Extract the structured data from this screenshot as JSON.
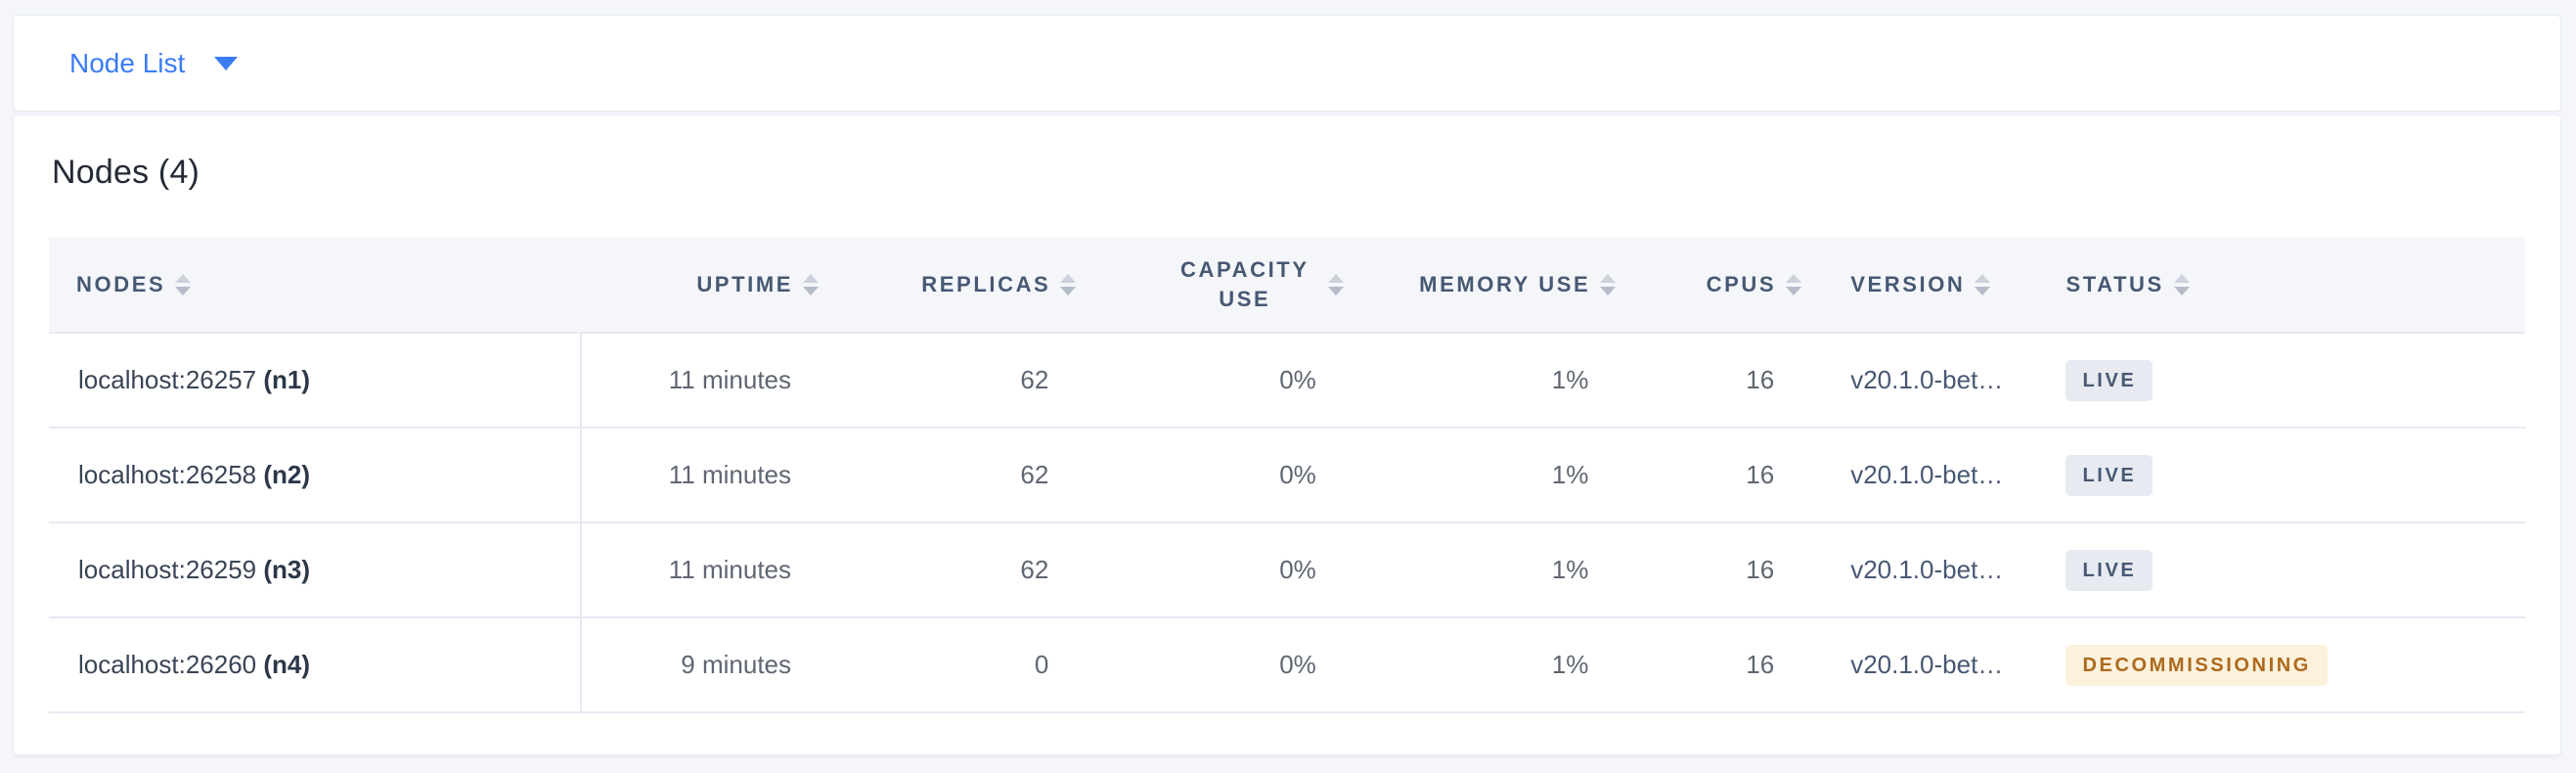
{
  "nav": {
    "view_dropdown": {
      "label": "Node List"
    }
  },
  "main": {
    "heading": "Nodes (4)",
    "table": {
      "headers": {
        "nodes": "NODES",
        "uptime": "UPTIME",
        "replicas": "REPLICAS",
        "capacity_use": "CAPACITY USE",
        "memory_use": "MEMORY USE",
        "cpus": "CPUS",
        "version": "VERSION",
        "status": "STATUS"
      },
      "rows": [
        {
          "address": "localhost:26257",
          "id": "(n1)",
          "uptime": "11 minutes",
          "replicas": "62",
          "capacity_use": "0%",
          "memory_use": "1%",
          "cpus": "16",
          "version": "v20.1.0-bet…",
          "status": "LIVE"
        },
        {
          "address": "localhost:26258",
          "id": "(n2)",
          "uptime": "11 minutes",
          "replicas": "62",
          "capacity_use": "0%",
          "memory_use": "1%",
          "cpus": "16",
          "version": "v20.1.0-bet…",
          "status": "LIVE"
        },
        {
          "address": "localhost:26259",
          "id": "(n3)",
          "uptime": "11 minutes",
          "replicas": "62",
          "capacity_use": "0%",
          "memory_use": "1%",
          "cpus": "16",
          "version": "v20.1.0-bet…",
          "status": "LIVE"
        },
        {
          "address": "localhost:26260",
          "id": "(n4)",
          "uptime": "9 minutes",
          "replicas": "0",
          "capacity_use": "0%",
          "memory_use": "1%",
          "cpus": "16",
          "version": "v20.1.0-bet…",
          "status": "DECOMMISSIONING"
        }
      ]
    }
  },
  "colors": {
    "accent_blue": "#3b7cf5",
    "header_text": "#475872",
    "live_badge_bg": "#e7eaf1",
    "live_badge_text": "#475872",
    "decommissioning_badge_bg": "#fcf1dc",
    "decommissioning_badge_text": "#ad6a1e",
    "page_background": "#f4f6fb"
  }
}
